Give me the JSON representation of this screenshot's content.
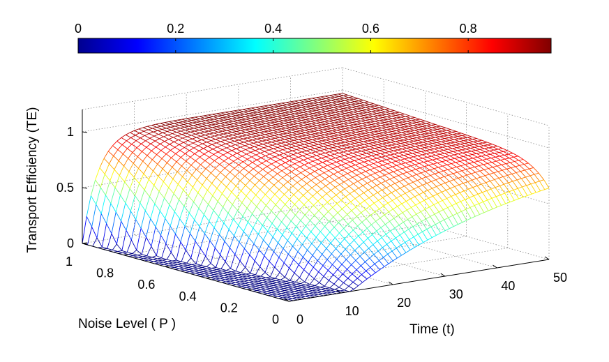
{
  "chart_data": {
    "type": "surface",
    "zlabel": "Transport Efficiency (TE)",
    "xlabel": "Time (t)",
    "ylabel": "Noise Level ( P )",
    "x_ticks": [
      "0",
      "10",
      "20",
      "30",
      "40",
      "50"
    ],
    "y_ticks": [
      "0",
      "0.2",
      "0.4",
      "0.6",
      "0.8",
      "1"
    ],
    "z_ticks": [
      "0",
      "0.5",
      "1"
    ],
    "xlim": [
      0,
      50
    ],
    "ylim": [
      0,
      1
    ],
    "zlim": [
      0,
      1.2
    ],
    "colorbar": {
      "ticks": [
        "0",
        "0.2",
        "0.4",
        "0.6",
        "0.8"
      ],
      "range": [
        0,
        0.97
      ],
      "colormap": "jet",
      "position": "top"
    },
    "grid": true,
    "series_description": {
      "x": [
        0,
        5,
        10,
        15,
        20,
        25,
        30,
        35,
        40,
        45,
        50
      ],
      "te_at_noise_1": [
        0.0,
        0.48,
        0.72,
        0.85,
        0.92,
        0.95,
        0.96,
        0.97,
        0.97,
        0.97,
        0.97
      ],
      "te_at_noise_0": [
        0.0,
        0.0,
        0.02,
        0.22,
        0.42,
        0.58,
        0.68,
        0.76,
        0.81,
        0.85,
        0.87
      ]
    }
  }
}
